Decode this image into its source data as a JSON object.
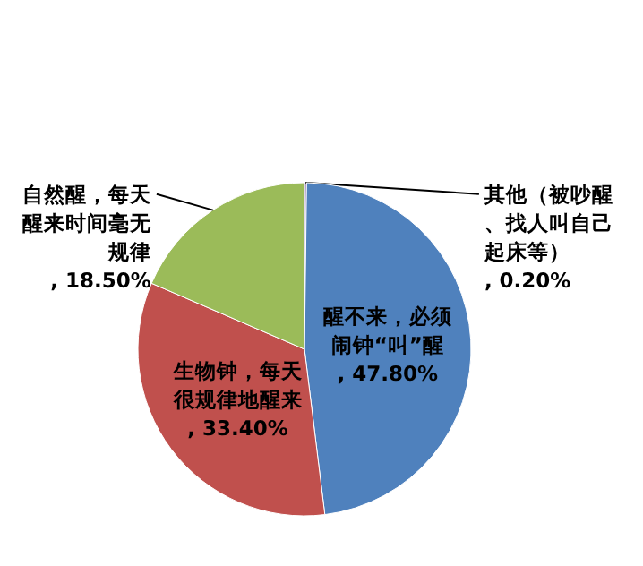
{
  "chart_data": {
    "type": "pie",
    "categories": [
      "其他（被吵醒、找人叫自己起床等）",
      "醒不来，必须闹钟“叫”醒",
      "生物钟，每天很规律地醒来",
      "自然醒，每天醒来时间毫无规律"
    ],
    "values": [
      0.2,
      47.8,
      33.4,
      18.5
    ],
    "value_labels": [
      ", 0.20%",
      ", 47.80%",
      ", 33.40%",
      ", 18.50%"
    ],
    "colors": [
      "#8064a2",
      "#4f81bd",
      "#c0504d",
      "#9bbb59"
    ]
  }
}
